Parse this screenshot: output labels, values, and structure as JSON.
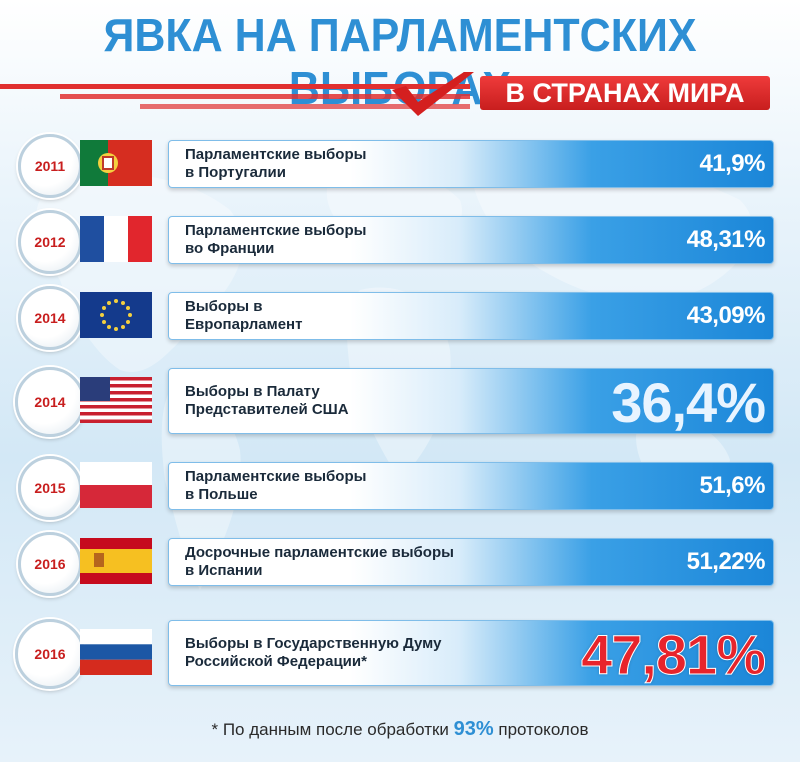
{
  "title": "ЯВКА НА ПАРЛАМЕНТСКИХ ВЫБОРАХ",
  "subtitle": "В СТРАНАХ МИРА",
  "rows": [
    {
      "year": "2011",
      "flag": "portugal-flag",
      "label_line1": "Парламентские выборы",
      "label_line2": "в Португалии",
      "pct": "41,9%"
    },
    {
      "year": "2012",
      "flag": "france-flag",
      "label_line1": "Парламентские выборы",
      "label_line2": "во Франции",
      "pct": "48,31%"
    },
    {
      "year": "2014",
      "flag": "eu-flag",
      "label_line1": "Выборы в",
      "label_line2": "Европарламент",
      "pct": "43,09%"
    },
    {
      "year": "2014",
      "flag": "usa-flag",
      "label_line1": "Выборы в Палату",
      "label_line2": "Представителей США",
      "pct": "36,4%"
    },
    {
      "year": "2015",
      "flag": "poland-flag",
      "label_line1": "Парламентские выборы",
      "label_line2": "в Польше",
      "pct": "51,6%"
    },
    {
      "year": "2016",
      "flag": "spain-flag",
      "label_line1": "Досрочные парламентские выборы",
      "label_line2": "в Испании",
      "pct": "51,22%"
    },
    {
      "year": "2016",
      "flag": "russia-flag",
      "label_line1": "Выборы в Государственную Думу",
      "label_line2": "Российской Федерации*",
      "pct": "47,81%"
    }
  ],
  "footnote": {
    "prefix": "* По данным после обработки ",
    "number": "93%",
    "suffix": " протоколов"
  },
  "colors": {
    "title_blue": "#2e8fd4",
    "accent_red": "#e8242b"
  }
}
